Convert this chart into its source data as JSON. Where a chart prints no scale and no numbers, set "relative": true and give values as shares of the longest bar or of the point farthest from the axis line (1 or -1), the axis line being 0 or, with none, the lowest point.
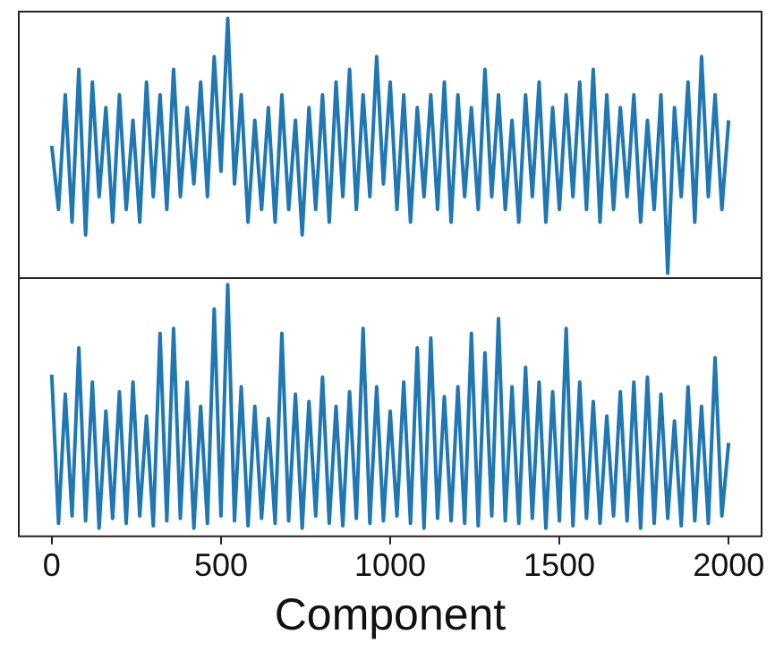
{
  "chart_data": [
    {
      "type": "line",
      "relative": true,
      "tick_labels": false,
      "xlim": [
        -100,
        2100
      ],
      "xticks": [
        0,
        500,
        1000,
        1500,
        2000
      ],
      "x": [
        0,
        20,
        40,
        60,
        80,
        100,
        120,
        140,
        160,
        180,
        200,
        220,
        240,
        260,
        280,
        300,
        320,
        340,
        360,
        380,
        400,
        420,
        440,
        460,
        480,
        500,
        520,
        540,
        560,
        580,
        600,
        620,
        640,
        660,
        680,
        700,
        720,
        740,
        760,
        780,
        800,
        820,
        840,
        860,
        880,
        900,
        920,
        940,
        960,
        980,
        1000,
        1020,
        1040,
        1060,
        1080,
        1100,
        1120,
        1140,
        1160,
        1180,
        1200,
        1220,
        1240,
        1260,
        1280,
        1300,
        1320,
        1340,
        1360,
        1380,
        1400,
        1420,
        1440,
        1460,
        1480,
        1500,
        1520,
        1540,
        1560,
        1580,
        1600,
        1620,
        1640,
        1660,
        1680,
        1700,
        1720,
        1740,
        1760,
        1780,
        1800,
        1820,
        1840,
        1860,
        1880,
        1900,
        1920,
        1940,
        1960,
        1980,
        2000
      ],
      "series": [
        {
          "color": "#1f77b4",
          "values": [
            0.5,
            0.25,
            0.7,
            0.2,
            0.8,
            0.15,
            0.75,
            0.3,
            0.65,
            0.2,
            0.7,
            0.25,
            0.6,
            0.2,
            0.75,
            0.3,
            0.7,
            0.25,
            0.8,
            0.3,
            0.65,
            0.35,
            0.75,
            0.3,
            0.85,
            0.4,
            1.0,
            0.35,
            0.7,
            0.2,
            0.6,
            0.25,
            0.65,
            0.2,
            0.7,
            0.25,
            0.6,
            0.15,
            0.65,
            0.25,
            0.7,
            0.2,
            0.75,
            0.3,
            0.8,
            0.25,
            0.7,
            0.3,
            0.85,
            0.35,
            0.75,
            0.25,
            0.7,
            0.2,
            0.65,
            0.3,
            0.7,
            0.25,
            0.75,
            0.2,
            0.7,
            0.3,
            0.65,
            0.25,
            0.8,
            0.3,
            0.7,
            0.25,
            0.6,
            0.2,
            0.7,
            0.3,
            0.75,
            0.2,
            0.65,
            0.25,
            0.7,
            0.3,
            0.75,
            0.25,
            0.8,
            0.2,
            0.7,
            0.25,
            0.65,
            0.3,
            0.7,
            0.2,
            0.6,
            0.25,
            0.7,
            0.0,
            0.65,
            0.3,
            0.75,
            0.2,
            0.85,
            0.3,
            0.7,
            0.25,
            0.6
          ]
        }
      ]
    },
    {
      "type": "line",
      "relative": true,
      "tick_labels": "x",
      "xlabel": "Component",
      "xlim": [
        -100,
        2100
      ],
      "xticks": [
        0,
        500,
        1000,
        1500,
        2000
      ],
      "x": [
        0,
        20,
        40,
        60,
        80,
        100,
        120,
        140,
        160,
        180,
        200,
        220,
        240,
        260,
        280,
        300,
        320,
        340,
        360,
        380,
        400,
        420,
        440,
        460,
        480,
        500,
        520,
        540,
        560,
        580,
        600,
        620,
        640,
        660,
        680,
        700,
        720,
        740,
        760,
        780,
        800,
        820,
        840,
        860,
        880,
        900,
        920,
        940,
        960,
        980,
        1000,
        1020,
        1040,
        1060,
        1080,
        1100,
        1120,
        1140,
        1160,
        1180,
        1200,
        1220,
        1240,
        1260,
        1280,
        1300,
        1320,
        1340,
        1360,
        1380,
        1400,
        1420,
        1440,
        1460,
        1480,
        1500,
        1520,
        1540,
        1560,
        1580,
        1600,
        1620,
        1640,
        1660,
        1680,
        1700,
        1720,
        1740,
        1760,
        1780,
        1800,
        1820,
        1840,
        1860,
        1880,
        1900,
        1920,
        1940,
        1960,
        1980,
        2000
      ],
      "series": [
        {
          "color": "#1f77b4",
          "values": [
            0.63,
            0.02,
            0.55,
            0.05,
            0.74,
            0.03,
            0.6,
            0.0,
            0.48,
            0.04,
            0.56,
            0.02,
            0.6,
            0.05,
            0.46,
            0.01,
            0.8,
            0.03,
            0.82,
            0.04,
            0.6,
            0.0,
            0.5,
            0.02,
            0.9,
            0.05,
            1.0,
            0.03,
            0.58,
            0.01,
            0.5,
            0.04,
            0.45,
            0.02,
            0.8,
            0.03,
            0.55,
            0.0,
            0.52,
            0.05,
            0.62,
            0.02,
            0.5,
            0.01,
            0.56,
            0.04,
            0.82,
            0.02,
            0.58,
            0.03,
            0.48,
            0.05,
            0.6,
            0.02,
            0.74,
            0.0,
            0.78,
            0.04,
            0.54,
            0.03,
            0.58,
            0.02,
            0.8,
            0.01,
            0.72,
            0.05,
            0.86,
            0.03,
            0.58,
            0.02,
            0.66,
            0.04,
            0.6,
            0.0,
            0.56,
            0.03,
            0.82,
            0.01,
            0.6,
            0.04,
            0.52,
            0.02,
            0.46,
            0.05,
            0.56,
            0.03,
            0.6,
            0.0,
            0.62,
            0.02,
            0.55,
            0.04,
            0.44,
            0.01,
            0.58,
            0.03,
            0.5,
            0.02,
            0.7,
            0.05,
            0.35
          ]
        }
      ]
    }
  ]
}
